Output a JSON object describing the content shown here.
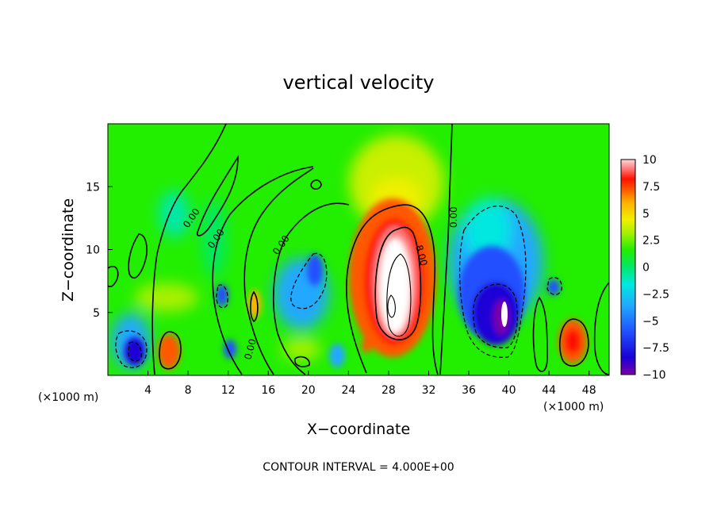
{
  "chart_data": {
    "type": "heatmap",
    "title": "vertical velocity",
    "xlabel": "X−coordinate",
    "ylabel": "Z−coordinate",
    "x_unit": "(×1000 m)",
    "xlim": [
      0,
      50
    ],
    "ylim": [
      0,
      20
    ],
    "x_ticks": [
      "4",
      "8",
      "12",
      "16",
      "20",
      "24",
      "28",
      "32",
      "36",
      "40",
      "44",
      "48"
    ],
    "y_ticks": [
      "5",
      "10",
      "15"
    ],
    "colorbar": {
      "ticks": [
        "10",
        "7.5",
        "5",
        "2.5",
        "0",
        "−2.5",
        "−5",
        "−7.5",
        "−10"
      ],
      "range": [
        -10,
        10
      ]
    },
    "contour_labels": [
      "0.00",
      "0.00",
      "0.00",
      "0.00",
      "0.00",
      "8.00"
    ],
    "features": [
      {
        "x": 29,
        "z": 7,
        "w": 10,
        "kind": "updraft core"
      },
      {
        "x": 39.5,
        "z": 5,
        "w": -10,
        "kind": "downdraft core"
      },
      {
        "x": 46,
        "z": 2.7,
        "w": 7,
        "kind": "updraft"
      },
      {
        "x": 6,
        "z": 2,
        "w": 6,
        "kind": "updraft"
      },
      {
        "x": 3,
        "z": 2,
        "w": -8,
        "kind": "downdraft"
      },
      {
        "x": 15,
        "z": 6,
        "w": 5,
        "kind": "updraft"
      },
      {
        "x": 11,
        "z": 7,
        "w": -6,
        "kind": "downdraft"
      },
      {
        "x": 21,
        "z": 8,
        "w": -5,
        "kind": "downdraft"
      },
      {
        "x": 29,
        "z": 15,
        "w": 3,
        "kind": "upper maximum"
      }
    ],
    "note": "CONTOUR INTERVAL = 4.000E+00"
  },
  "colors": {
    "background": "#ffffff",
    "palette": [
      "#7a00a8",
      "#1a00d6",
      "#2050ff",
      "#20a8ff",
      "#00e8e0",
      "#00e868",
      "#22ee00",
      "#a8f000",
      "#f0f000",
      "#ffb000",
      "#ff5800",
      "#ff1000",
      "#ff8080",
      "#ffd8d8"
    ]
  }
}
